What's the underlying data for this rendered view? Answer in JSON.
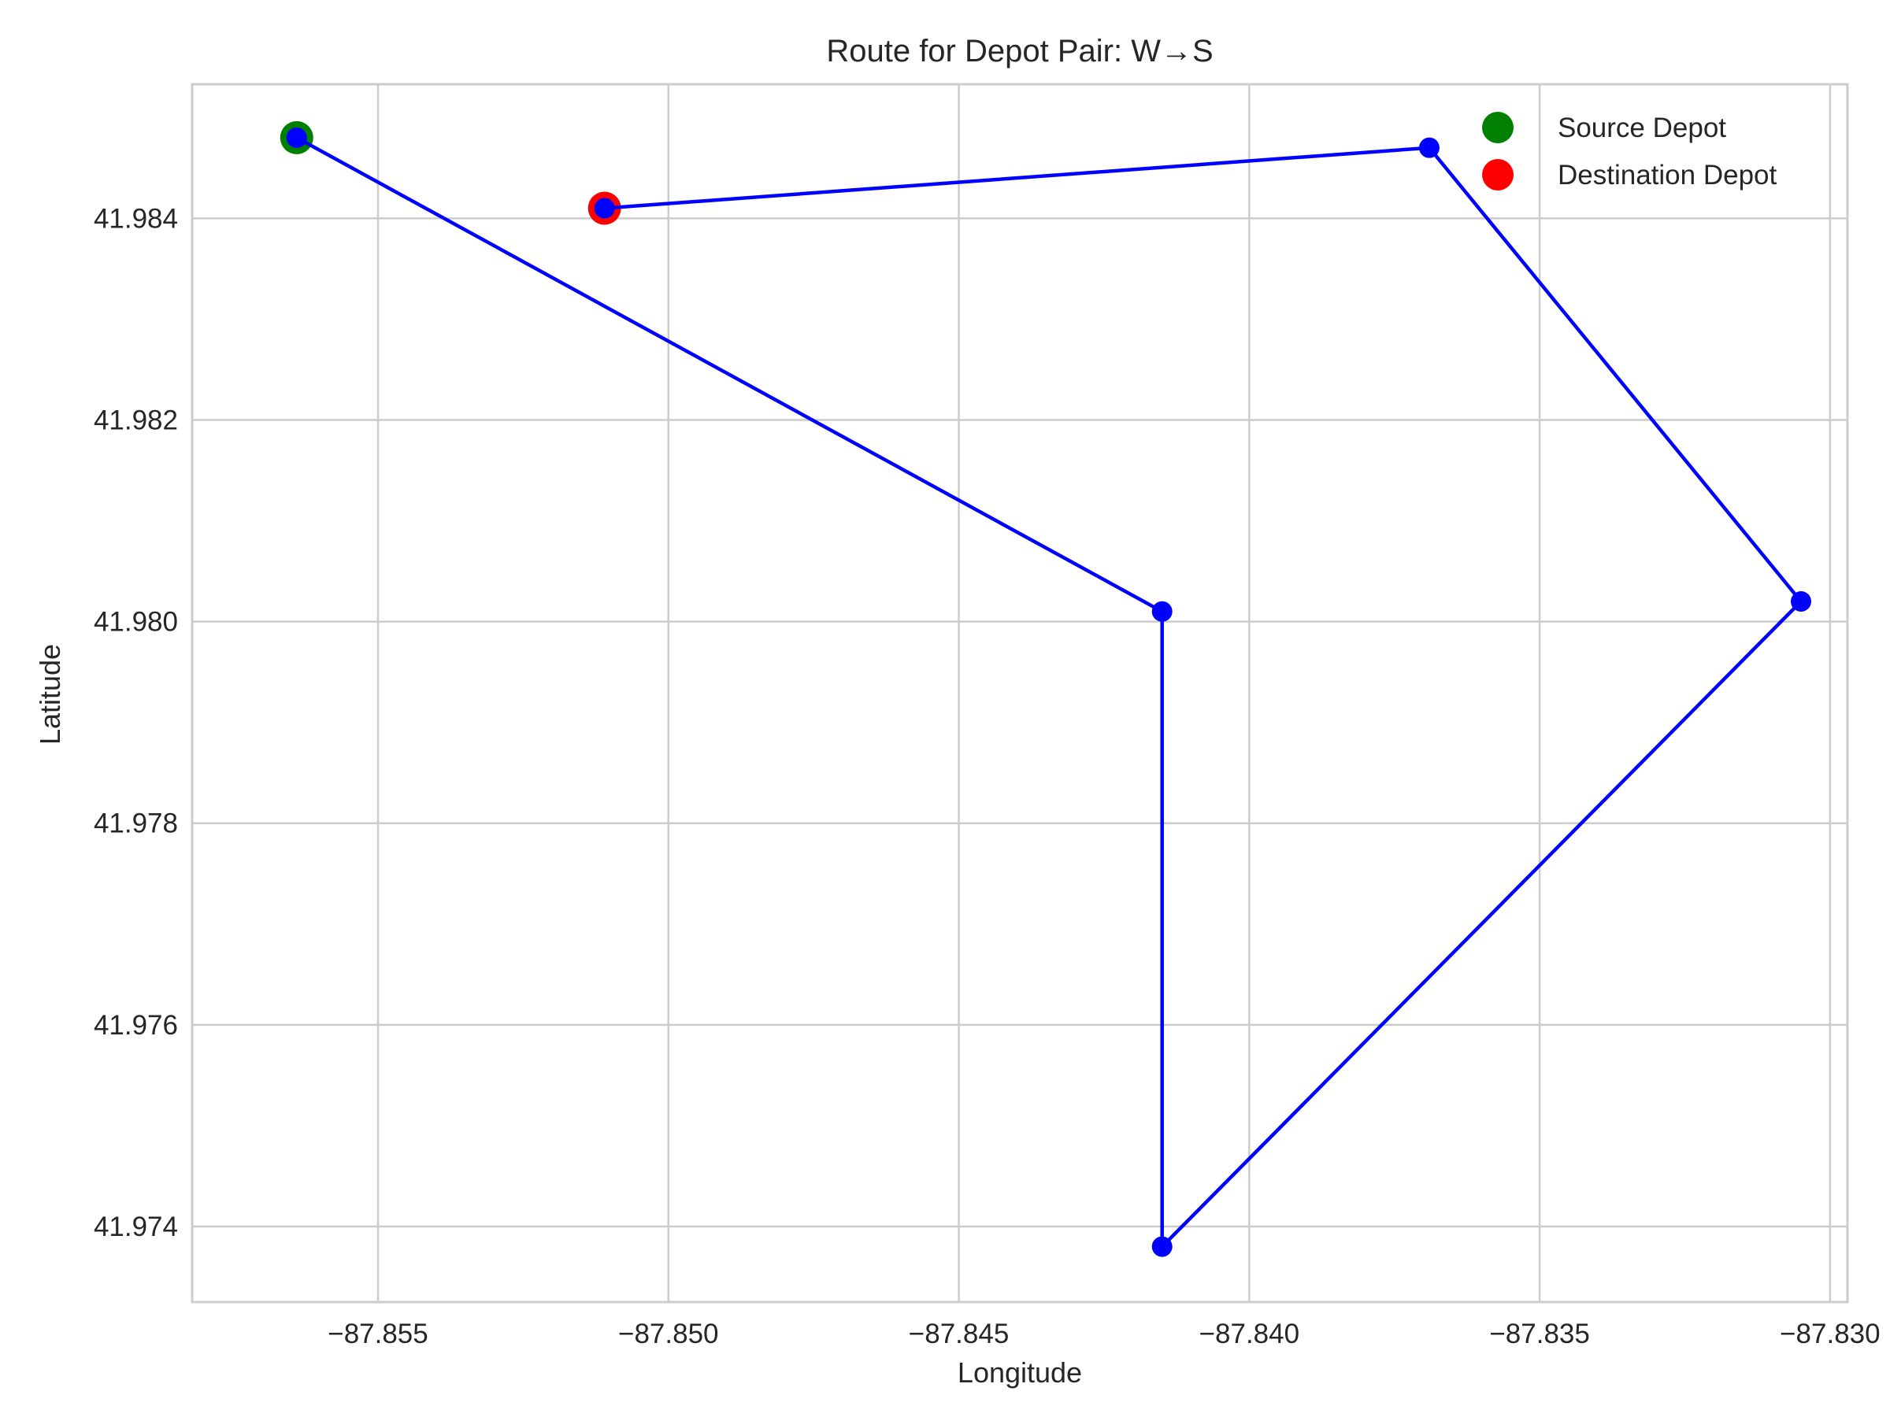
{
  "chart_data": {
    "type": "line",
    "title": "Route for Depot Pair: W→S",
    "xlabel": "Longitude",
    "ylabel": "Latitude",
    "xlim": [
      -87.8582,
      -87.8297
    ],
    "ylim": [
      41.97325,
      41.98533
    ],
    "xticks": [
      -87.855,
      -87.85,
      -87.845,
      -87.84,
      -87.835,
      -87.83
    ],
    "xtick_labels": [
      "−87.855",
      "−87.850",
      "−87.845",
      "−87.840",
      "−87.835",
      "−87.830"
    ],
    "yticks": [
      41.974,
      41.976,
      41.978,
      41.98,
      41.982,
      41.984
    ],
    "ytick_labels": [
      "41.974",
      "41.976",
      "41.978",
      "41.980",
      "41.982",
      "41.984"
    ],
    "grid": true,
    "legend_position": "top-right",
    "series": [
      {
        "color": "#0000ff",
        "points": [
          {
            "x": -87.8564,
            "y": 41.9848
          },
          {
            "x": -87.8415,
            "y": 41.9801
          },
          {
            "x": -87.8415,
            "y": 41.9738
          },
          {
            "x": -87.8305,
            "y": 41.9802
          },
          {
            "x": -87.8369,
            "y": 41.9847
          },
          {
            "x": -87.8511,
            "y": 41.9841
          }
        ]
      }
    ],
    "markers": [
      {
        "name": "Source Depot",
        "color": "#008000",
        "x": -87.8564,
        "y": 41.9848
      },
      {
        "name": "Destination Depot",
        "color": "#ff0000",
        "x": -87.8511,
        "y": 41.9841
      }
    ]
  }
}
